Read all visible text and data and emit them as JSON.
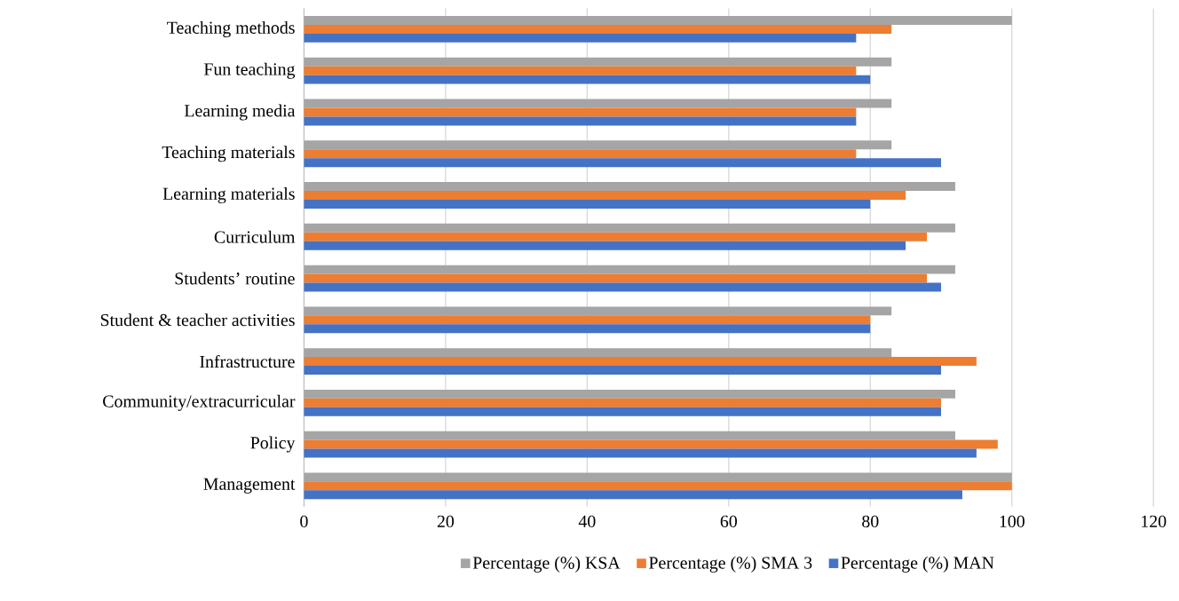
{
  "chart_data": {
    "type": "bar",
    "orientation": "horizontal",
    "categories": [
      "Teaching methods",
      "Fun teaching",
      "Learning media",
      "Teaching materials",
      "Learning materials",
      "Curriculum",
      "Students’ routine",
      "Student & teacher activities",
      "Infrastructure",
      "Community/extracurricular",
      "Policy",
      "Management"
    ],
    "series": [
      {
        "name": "Percentage (%) KSA",
        "color": "#a5a5a5",
        "values": [
          100,
          83,
          83,
          83,
          92,
          92,
          92,
          83,
          83,
          92,
          92,
          100
        ]
      },
      {
        "name": "Percentage (%) SMA 3",
        "color": "#ed7d31",
        "values": [
          83,
          78,
          78,
          78,
          85,
          88,
          88,
          80,
          95,
          90,
          98,
          100
        ]
      },
      {
        "name": "Percentage (%) MAN",
        "color": "#4472c4",
        "values": [
          78,
          80,
          78,
          90,
          80,
          85,
          90,
          80,
          90,
          90,
          95,
          93
        ]
      }
    ],
    "xlim": [
      0,
      120
    ],
    "xticks": [
      0,
      20,
      40,
      60,
      80,
      100,
      120
    ],
    "grid": "x",
    "legend": "bottom"
  }
}
